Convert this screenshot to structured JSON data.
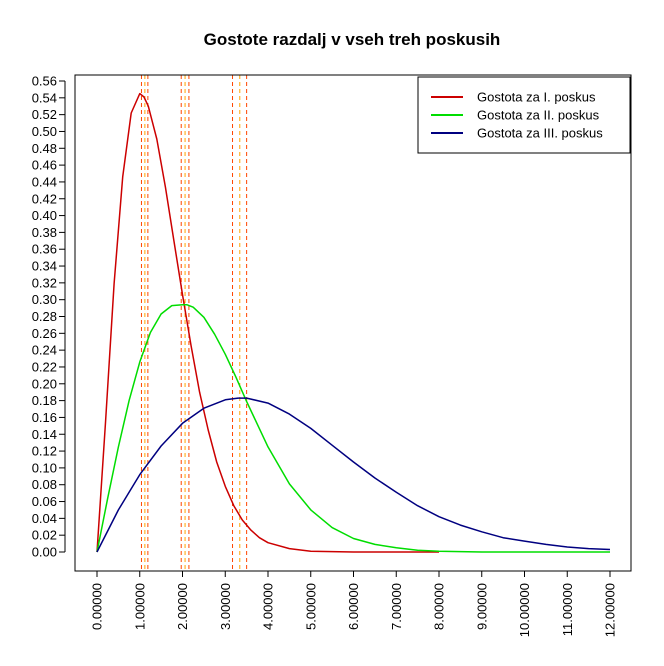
{
  "chart_data": {
    "type": "line",
    "title": "Gostote razdalj v vseh treh poskusih",
    "xlabel": "",
    "ylabel": "",
    "xlim": [
      0,
      12
    ],
    "ylim": [
      0,
      0.56
    ],
    "x_ticks": [
      "0.00000",
      "1.00000",
      "2.00000",
      "3.00000",
      "4.00000",
      "5.00000",
      "6.00000",
      "7.00000",
      "8.00000",
      "9.00000",
      "10.00000",
      "11.00000",
      "12.00000"
    ],
    "y_ticks": [
      "0.00",
      "0.02",
      "0.04",
      "0.06",
      "0.08",
      "0.10",
      "0.12",
      "0.14",
      "0.16",
      "0.18",
      "0.20",
      "0.22",
      "0.24",
      "0.26",
      "0.28",
      "0.30",
      "0.32",
      "0.34",
      "0.36",
      "0.38",
      "0.40",
      "0.42",
      "0.44",
      "0.46",
      "0.48",
      "0.50",
      "0.52",
      "0.54",
      "0.56"
    ],
    "grid": false,
    "legend_position": "top-right",
    "series": [
      {
        "name": "Gostota za I. poskus",
        "color": "#cc0000",
        "x": [
          0,
          0.2,
          0.4,
          0.6,
          0.8,
          1.0,
          1.1,
          1.2,
          1.4,
          1.6,
          1.8,
          2.0,
          2.2,
          2.4,
          2.6,
          2.8,
          3.0,
          3.2,
          3.4,
          3.6,
          3.8,
          4.0,
          4.5,
          5.0,
          6.0,
          7.0,
          8.0
        ],
        "y": [
          0,
          0.154,
          0.319,
          0.446,
          0.522,
          0.545,
          0.541,
          0.53,
          0.491,
          0.434,
          0.37,
          0.306,
          0.245,
          0.19,
          0.145,
          0.107,
          0.078,
          0.055,
          0.038,
          0.026,
          0.017,
          0.011,
          0.004,
          0.001,
          0.0,
          0.0,
          0.0
        ]
      },
      {
        "name": "Gostota za II. poskus",
        "color": "#00dd00",
        "x": [
          0,
          0.25,
          0.5,
          0.75,
          1.0,
          1.25,
          1.5,
          1.75,
          2.0,
          2.1,
          2.25,
          2.5,
          2.75,
          3.0,
          3.25,
          3.5,
          3.75,
          4.0,
          4.5,
          5.0,
          5.5,
          6.0,
          6.5,
          7.0,
          7.5,
          8.0,
          9.0,
          10.0,
          11.0,
          12.0
        ],
        "y": [
          0,
          0.064,
          0.125,
          0.18,
          0.226,
          0.261,
          0.283,
          0.293,
          0.294,
          0.294,
          0.291,
          0.279,
          0.259,
          0.235,
          0.208,
          0.179,
          0.152,
          0.125,
          0.081,
          0.05,
          0.029,
          0.016,
          0.009,
          0.005,
          0.002,
          0.001,
          0.0,
          0.0,
          0.0,
          0.0
        ]
      },
      {
        "name": "Gostota za III. poskus",
        "color": "#000080",
        "x": [
          0,
          0.5,
          1.0,
          1.5,
          2.0,
          2.5,
          3.0,
          3.3,
          3.5,
          4.0,
          4.5,
          5.0,
          5.5,
          6.0,
          6.5,
          7.0,
          7.5,
          8.0,
          8.5,
          9.0,
          9.5,
          10.0,
          10.5,
          11.0,
          11.5,
          12.0
        ],
        "y": [
          0,
          0.05,
          0.092,
          0.126,
          0.153,
          0.171,
          0.181,
          0.183,
          0.183,
          0.177,
          0.164,
          0.147,
          0.127,
          0.107,
          0.088,
          0.071,
          0.055,
          0.042,
          0.032,
          0.024,
          0.017,
          0.013,
          0.009,
          0.006,
          0.004,
          0.003
        ]
      }
    ],
    "vertical_lines": [
      {
        "x": 1.04,
        "color": "#ff4500"
      },
      {
        "x": 1.12,
        "color": "#ffa500"
      },
      {
        "x": 1.19,
        "color": "#ff4500"
      },
      {
        "x": 1.97,
        "color": "#ff4500"
      },
      {
        "x": 2.06,
        "color": "#ffa500"
      },
      {
        "x": 2.15,
        "color": "#ff4500"
      },
      {
        "x": 3.17,
        "color": "#ff4500"
      },
      {
        "x": 3.34,
        "color": "#ffa500"
      },
      {
        "x": 3.5,
        "color": "#ff4500"
      }
    ]
  }
}
